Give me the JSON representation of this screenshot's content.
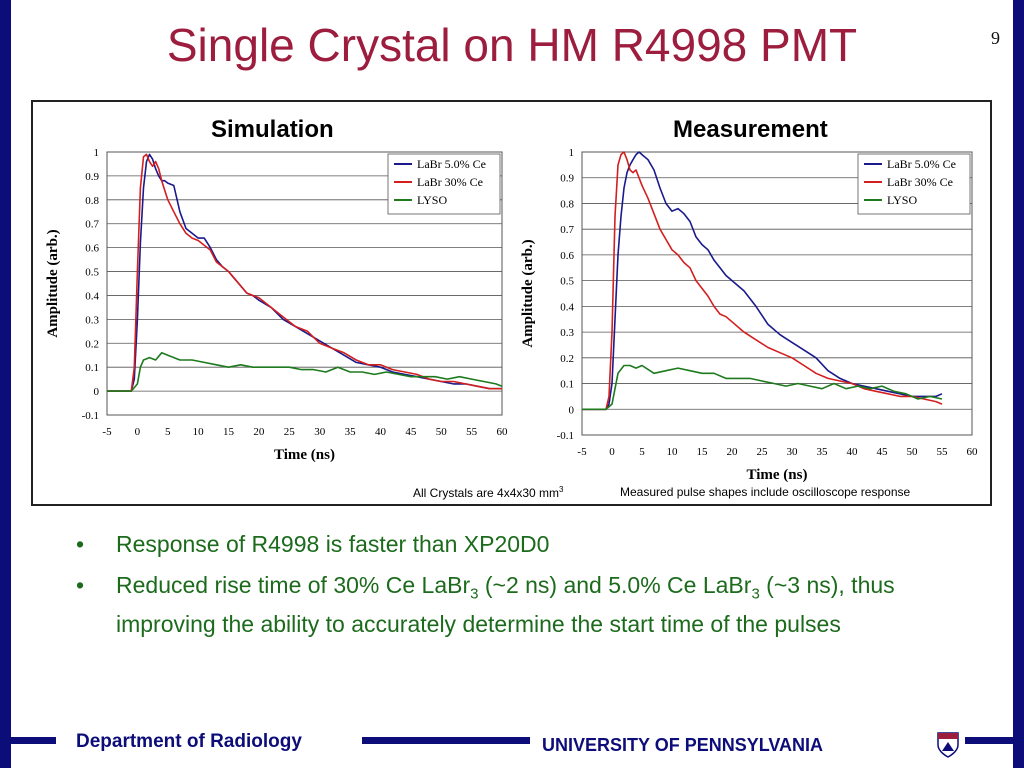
{
  "slide": {
    "title": "Single Crystal on HM R4998 PMT",
    "page_number": "9"
  },
  "figure": {
    "left_panel_title": "Simulation",
    "right_panel_title": "Measurement",
    "note_left": "All Crystals are 4x4x30 mm",
    "note_left_sup": "3",
    "note_right": "Measured pulse shapes include oscilloscope response"
  },
  "bullets": [
    {
      "text": "Response of R4998 is faster than XP20D0"
    },
    {
      "parts": [
        "Reduced rise time of 30% Ce LaBr",
        "3",
        " (~2 ns) and 5.0% Ce LaBr",
        "3",
        " (~3 ns), thus improving the ability to accurately determine the start time of the pulses"
      ]
    }
  ],
  "footer": {
    "left": "Department of Radiology",
    "right": "UNIVERSITY OF PENNSYLVANIA",
    "logo_icon": "penn-shield-icon"
  },
  "colors": {
    "title": "#9c1d3e",
    "frame": "#0d0d7a",
    "bullet": "#1c6b1c",
    "labr5": "#1a1a8c",
    "labr30": "#d41f1f",
    "lyso": "#1d7a1d"
  },
  "chart_data": [
    {
      "type": "line",
      "panel": "Simulation",
      "xlabel": "Time (ns)",
      "ylabel": "Amplitude (arb.)",
      "xlim": [
        -5,
        60
      ],
      "ylim": [
        -0.1,
        1
      ],
      "xticks": [
        -5,
        0,
        5,
        10,
        15,
        20,
        25,
        30,
        35,
        40,
        45,
        50,
        55,
        60
      ],
      "yticks": [
        -0.1,
        0,
        0.1,
        0.2,
        0.3,
        0.4,
        0.5,
        0.6,
        0.7,
        0.8,
        0.9,
        1
      ],
      "grid": true,
      "legend_position": "top-right",
      "series": [
        {
          "name": "LaBr 5.0% Ce",
          "color": "#1a1a8c",
          "x": [
            -5,
            -1,
            -0.5,
            0,
            0.5,
            1,
            1.5,
            2,
            2.5,
            3,
            3.5,
            4,
            4.5,
            5,
            6,
            7,
            8,
            9,
            10,
            11,
            12,
            13,
            14,
            15,
            16,
            17,
            18,
            19,
            20,
            22,
            24,
            26,
            28,
            30,
            32,
            34,
            36,
            38,
            40,
            42,
            44,
            46,
            48,
            50,
            52,
            54,
            56,
            58,
            60
          ],
          "y": [
            0,
            0,
            0.05,
            0.3,
            0.62,
            0.85,
            0.96,
            0.99,
            0.97,
            0.93,
            0.9,
            0.88,
            0.88,
            0.87,
            0.86,
            0.75,
            0.68,
            0.66,
            0.64,
            0.64,
            0.6,
            0.55,
            0.52,
            0.5,
            0.47,
            0.44,
            0.41,
            0.4,
            0.38,
            0.35,
            0.3,
            0.27,
            0.24,
            0.21,
            0.18,
            0.15,
            0.12,
            0.11,
            0.1,
            0.08,
            0.07,
            0.06,
            0.05,
            0.04,
            0.03,
            0.03,
            0.02,
            0.01,
            0.01
          ]
        },
        {
          "name": "LaBr 30% Ce",
          "color": "#d41f1f",
          "x": [
            -5,
            -1,
            -0.5,
            0,
            0.5,
            1,
            1.5,
            2,
            2.5,
            3,
            3.5,
            4,
            4.5,
            5,
            6,
            7,
            8,
            9,
            10,
            11,
            12,
            13,
            14,
            15,
            16,
            17,
            18,
            19,
            20,
            22,
            24,
            26,
            28,
            30,
            32,
            34,
            36,
            38,
            40,
            42,
            44,
            46,
            48,
            50,
            52,
            54,
            56,
            58,
            60
          ],
          "y": [
            0,
            0,
            0.1,
            0.5,
            0.85,
            0.98,
            0.99,
            0.96,
            0.94,
            0.96,
            0.93,
            0.88,
            0.84,
            0.8,
            0.75,
            0.7,
            0.66,
            0.64,
            0.63,
            0.61,
            0.59,
            0.54,
            0.52,
            0.5,
            0.47,
            0.44,
            0.41,
            0.4,
            0.39,
            0.35,
            0.31,
            0.27,
            0.25,
            0.2,
            0.18,
            0.16,
            0.13,
            0.11,
            0.11,
            0.09,
            0.08,
            0.07,
            0.05,
            0.04,
            0.04,
            0.03,
            0.02,
            0.01,
            0.01
          ]
        },
        {
          "name": "LYSO",
          "color": "#1d7a1d",
          "x": [
            -5,
            -1,
            0,
            0.5,
            1,
            2,
            3,
            4,
            5,
            7,
            9,
            11,
            13,
            15,
            17,
            19,
            21,
            23,
            25,
            27,
            29,
            31,
            33,
            35,
            37,
            39,
            41,
            43,
            45,
            47,
            49,
            51,
            53,
            55,
            57,
            59,
            60
          ],
          "y": [
            0,
            0,
            0.03,
            0.1,
            0.13,
            0.14,
            0.13,
            0.16,
            0.15,
            0.13,
            0.13,
            0.12,
            0.11,
            0.1,
            0.11,
            0.1,
            0.1,
            0.1,
            0.1,
            0.09,
            0.09,
            0.08,
            0.1,
            0.08,
            0.08,
            0.07,
            0.08,
            0.07,
            0.06,
            0.06,
            0.06,
            0.05,
            0.06,
            0.05,
            0.04,
            0.03,
            0.02
          ]
        }
      ]
    },
    {
      "type": "line",
      "panel": "Measurement",
      "xlabel": "Time (ns)",
      "ylabel": "Amplitude (arb.)",
      "xlim": [
        -5,
        60
      ],
      "ylim": [
        -0.1,
        1
      ],
      "xticks": [
        -5,
        0,
        5,
        10,
        15,
        20,
        25,
        30,
        35,
        40,
        45,
        50,
        55,
        60
      ],
      "yticks": [
        -0.1,
        0,
        0.1,
        0.2,
        0.3,
        0.4,
        0.5,
        0.6,
        0.7,
        0.8,
        0.9,
        1
      ],
      "grid": true,
      "legend_position": "top-right",
      "series": [
        {
          "name": "LaBr 5.0% Ce",
          "color": "#1a1a8c",
          "x": [
            -5,
            -1,
            -0.5,
            0,
            0.5,
            1,
            1.5,
            2,
            2.5,
            3,
            3.5,
            4,
            4.5,
            5,
            6,
            7,
            8,
            9,
            10,
            11,
            12,
            13,
            14,
            15,
            16,
            17,
            18,
            19,
            20,
            22,
            24,
            26,
            28,
            30,
            32,
            34,
            36,
            38,
            40,
            42,
            44,
            46,
            48,
            50,
            52,
            54,
            55
          ],
          "y": [
            0,
            0,
            0.02,
            0.1,
            0.35,
            0.6,
            0.75,
            0.86,
            0.92,
            0.95,
            0.97,
            0.99,
            1.0,
            0.99,
            0.97,
            0.93,
            0.86,
            0.8,
            0.77,
            0.78,
            0.76,
            0.73,
            0.67,
            0.64,
            0.62,
            0.58,
            0.55,
            0.52,
            0.5,
            0.46,
            0.4,
            0.33,
            0.29,
            0.26,
            0.23,
            0.2,
            0.15,
            0.12,
            0.1,
            0.09,
            0.08,
            0.07,
            0.06,
            0.05,
            0.05,
            0.05,
            0.06
          ]
        },
        {
          "name": "LaBr 30% Ce",
          "color": "#d41f1f",
          "x": [
            -5,
            -1,
            -0.5,
            0,
            0.5,
            1,
            1.5,
            2,
            2.5,
            3,
            3.5,
            4,
            4.5,
            5,
            6,
            7,
            8,
            9,
            10,
            11,
            12,
            13,
            14,
            15,
            16,
            17,
            18,
            19,
            20,
            22,
            24,
            26,
            28,
            30,
            32,
            34,
            36,
            38,
            40,
            42,
            44,
            46,
            48,
            50,
            52,
            54,
            55
          ],
          "y": [
            0,
            0,
            0.05,
            0.3,
            0.75,
            0.95,
            0.99,
            1.0,
            0.97,
            0.93,
            0.92,
            0.93,
            0.9,
            0.87,
            0.82,
            0.76,
            0.7,
            0.66,
            0.62,
            0.6,
            0.57,
            0.55,
            0.5,
            0.47,
            0.44,
            0.4,
            0.37,
            0.36,
            0.34,
            0.3,
            0.27,
            0.24,
            0.22,
            0.2,
            0.17,
            0.14,
            0.12,
            0.11,
            0.1,
            0.08,
            0.07,
            0.06,
            0.05,
            0.05,
            0.04,
            0.03,
            0.02
          ]
        },
        {
          "name": "LYSO",
          "color": "#1d7a1d",
          "x": [
            -5,
            -1,
            0,
            0.5,
            1,
            2,
            3,
            4,
            5,
            7,
            9,
            11,
            13,
            15,
            17,
            19,
            21,
            23,
            25,
            27,
            29,
            31,
            33,
            35,
            37,
            39,
            41,
            43,
            45,
            47,
            49,
            51,
            53,
            55
          ],
          "y": [
            0,
            0,
            0.02,
            0.08,
            0.14,
            0.17,
            0.17,
            0.16,
            0.17,
            0.14,
            0.15,
            0.16,
            0.15,
            0.14,
            0.14,
            0.12,
            0.12,
            0.12,
            0.11,
            0.1,
            0.09,
            0.1,
            0.09,
            0.08,
            0.1,
            0.08,
            0.09,
            0.08,
            0.09,
            0.07,
            0.06,
            0.04,
            0.05,
            0.04
          ]
        }
      ]
    }
  ]
}
